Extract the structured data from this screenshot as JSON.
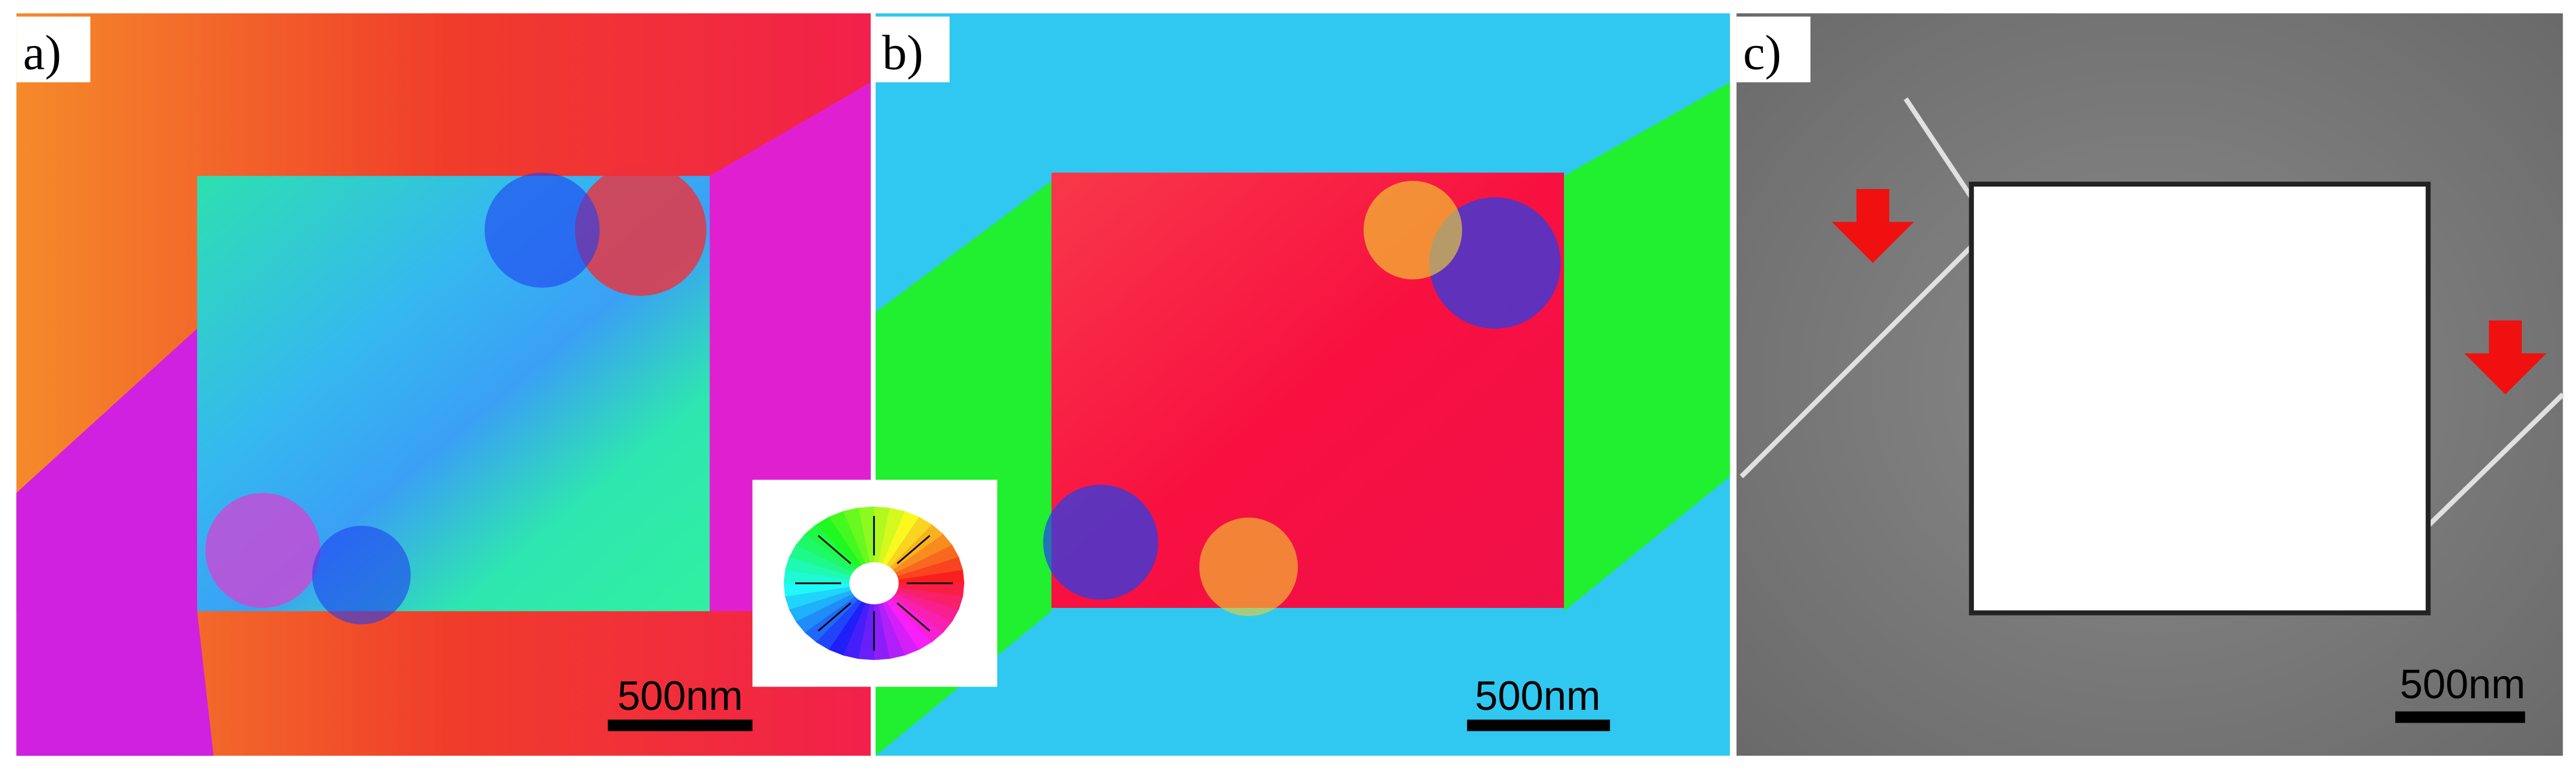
{
  "panels": [
    {
      "label": "a)",
      "scale_bar": "500nm"
    },
    {
      "label": "b)",
      "scale_bar": "500nm"
    },
    {
      "label": "c)",
      "scale_bar": "500nm"
    }
  ]
}
